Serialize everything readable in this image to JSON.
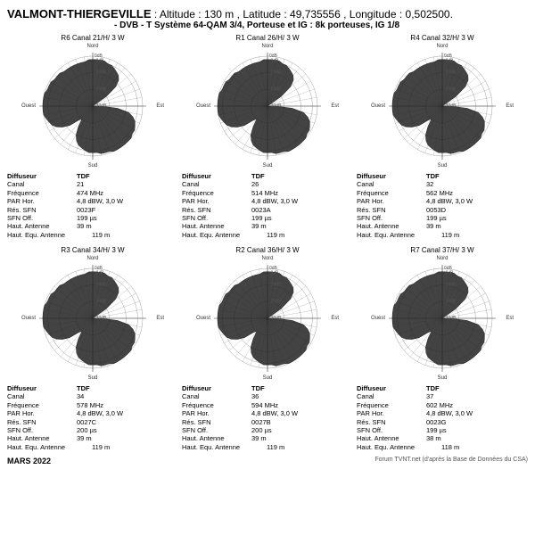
{
  "header": {
    "site_name": "VALMONT-THIERGEVILLE",
    "alt_label": "Altitude",
    "alt_val": "130 m",
    "lat_label": "Latitude",
    "lat_val": "49,735556",
    "lon_label": "Longitude",
    "lon_val": "0,502500",
    "system_line": "- DVB - T   Système 64-QAM 3/4,  Porteuse et IG : 8k porteuses, IG 1/8"
  },
  "compass": {
    "n": "Nord",
    "s": "Sud",
    "e": "Est",
    "w": "Ouest"
  },
  "row_labels": {
    "diffuseur": "Diffuseur",
    "operator": "TDF",
    "canal": "Canal",
    "freq": "Fréquence",
    "par": "PAR Hor.",
    "res_sfn": "Rés. SFN",
    "sfn_off": "SFN Off.",
    "haut_ant": "Haut. Antenne",
    "haut_equ": "Haut. Equ. Antenne"
  },
  "polar_style": {
    "grid_color": "#888888",
    "axis_color": "#333333",
    "fill_color": "#222222",
    "bg": "#ffffff",
    "rings_db": [
      -30,
      -20,
      -10,
      -3,
      0
    ],
    "max_radius": 56
  },
  "panels": [
    {
      "id": "R6",
      "title": "R6  Canal 21/H/ 3 W",
      "canal": "21",
      "freq": "474 MHz",
      "par": "4,8 dBW, 3,0 W",
      "res_sfn": "0023F",
      "sfn_off": "199 µs",
      "haut_ant": "39 m",
      "haut_equ": "119 m",
      "pattern_db": [
        -2,
        -2,
        -2,
        -2,
        -3,
        -3,
        -4,
        -5,
        -6,
        -8,
        -12,
        -20,
        -30,
        -30,
        -30,
        -30,
        -30,
        -30,
        -25,
        -15,
        -8,
        -5,
        -3,
        -2,
        -1,
        -1,
        0,
        0,
        0,
        0,
        0,
        0,
        -1,
        -1,
        -1,
        -2,
        -2,
        -2,
        -3,
        -4,
        -5,
        -7,
        -10,
        -15,
        -20,
        -18,
        -12,
        -8,
        -5,
        -3,
        -2,
        -1,
        0,
        0,
        0,
        0,
        0,
        0,
        -1,
        -1,
        -1,
        -2,
        -2,
        -2,
        -3,
        -3,
        -3,
        -3,
        -3,
        -3,
        -3,
        -2
      ]
    },
    {
      "id": "R1",
      "title": "R1  Canal 26/H/ 3 W",
      "canal": "26",
      "freq": "514 MHz",
      "par": "4,8 dBW, 3,0 W",
      "res_sfn": "0023A",
      "sfn_off": "199 µs",
      "haut_ant": "39 m",
      "haut_equ": "119 m",
      "pattern_db": [
        -2,
        -2,
        -2,
        -2,
        -3,
        -3,
        -4,
        -5,
        -6,
        -8,
        -12,
        -20,
        -30,
        -30,
        -30,
        -30,
        -30,
        -30,
        -25,
        -15,
        -8,
        -5,
        -3,
        -2,
        -1,
        -1,
        0,
        0,
        0,
        0,
        0,
        0,
        -1,
        -1,
        -1,
        -2,
        -2,
        -2,
        -3,
        -4,
        -5,
        -7,
        -10,
        -15,
        -20,
        -18,
        -12,
        -8,
        -5,
        -3,
        -2,
        -1,
        0,
        0,
        0,
        0,
        0,
        0,
        -1,
        -1,
        -1,
        -2,
        -2,
        -2,
        -3,
        -3,
        -3,
        -3,
        -3,
        -3,
        -3,
        -2
      ]
    },
    {
      "id": "R4",
      "title": "R4  Canal 32/H/ 3 W",
      "canal": "32",
      "freq": "562 MHz",
      "par": "4,8 dBW, 3,0 W",
      "res_sfn": "0053D",
      "sfn_off": "199 µs",
      "haut_ant": "39 m",
      "haut_equ": "119 m",
      "pattern_db": [
        -2,
        -2,
        -2,
        -2,
        -3,
        -3,
        -4,
        -5,
        -6,
        -8,
        -12,
        -20,
        -30,
        -30,
        -30,
        -30,
        -30,
        -30,
        -25,
        -15,
        -8,
        -5,
        -3,
        -2,
        -1,
        -1,
        0,
        0,
        0,
        0,
        0,
        0,
        -1,
        -1,
        -1,
        -2,
        -2,
        -2,
        -3,
        -4,
        -5,
        -7,
        -10,
        -15,
        -20,
        -18,
        -12,
        -8,
        -5,
        -3,
        -2,
        -1,
        0,
        0,
        0,
        0,
        0,
        0,
        -1,
        -1,
        -1,
        -2,
        -2,
        -2,
        -3,
        -3,
        -3,
        -3,
        -3,
        -3,
        -3,
        -2
      ]
    },
    {
      "id": "R3",
      "title": "R3  Canal 34/H/ 3 W",
      "canal": "34",
      "freq": "578 MHz",
      "par": "4,8 dBW, 3,0 W",
      "res_sfn": "0027C",
      "sfn_off": "200 µs",
      "haut_ant": "39 m",
      "haut_equ": "119 m",
      "pattern_db": [
        -2,
        -2,
        -2,
        -2,
        -3,
        -3,
        -4,
        -5,
        -6,
        -8,
        -12,
        -20,
        -30,
        -30,
        -30,
        -30,
        -30,
        -30,
        -25,
        -15,
        -8,
        -5,
        -3,
        -2,
        -1,
        -1,
        0,
        0,
        0,
        0,
        0,
        0,
        -1,
        -1,
        -1,
        -2,
        -2,
        -2,
        -3,
        -4,
        -5,
        -7,
        -10,
        -15,
        -20,
        -18,
        -12,
        -8,
        -5,
        -3,
        -2,
        -1,
        0,
        0,
        0,
        0,
        0,
        0,
        -1,
        -1,
        -1,
        -2,
        -2,
        -2,
        -3,
        -3,
        -3,
        -3,
        -3,
        -3,
        -3,
        -2
      ]
    },
    {
      "id": "R2",
      "title": "R2  Canal 36/H/ 3 W",
      "canal": "36",
      "freq": "594 MHz",
      "par": "4,8 dBW, 3,0 W",
      "res_sfn": "0027B",
      "sfn_off": "200 µs",
      "haut_ant": "39 m",
      "haut_equ": "119 m",
      "pattern_db": [
        -2,
        -2,
        -2,
        -2,
        -3,
        -3,
        -4,
        -5,
        -6,
        -8,
        -12,
        -20,
        -30,
        -30,
        -30,
        -30,
        -30,
        -30,
        -25,
        -15,
        -8,
        -5,
        -3,
        -2,
        -1,
        -1,
        0,
        0,
        0,
        0,
        0,
        0,
        -1,
        -1,
        -1,
        -2,
        -2,
        -2,
        -3,
        -4,
        -5,
        -7,
        -10,
        -15,
        -20,
        -18,
        -12,
        -8,
        -5,
        -3,
        -2,
        -1,
        0,
        0,
        0,
        0,
        0,
        0,
        -1,
        -1,
        -1,
        -2,
        -2,
        -2,
        -3,
        -3,
        -3,
        -3,
        -3,
        -3,
        -3,
        -2
      ]
    },
    {
      "id": "R7",
      "title": "R7  Canal 37/H/ 3 W",
      "canal": "37",
      "freq": "602 MHz",
      "par": "4,8 dBW, 3,0 W",
      "res_sfn": "0023G",
      "sfn_off": "199 µs",
      "haut_ant": "38 m",
      "haut_equ": "118 m",
      "pattern_db": [
        -2,
        -2,
        -2,
        -2,
        -3,
        -3,
        -4,
        -5,
        -6,
        -8,
        -12,
        -20,
        -30,
        -30,
        -30,
        -30,
        -30,
        -30,
        -25,
        -15,
        -8,
        -5,
        -3,
        -2,
        -1,
        -1,
        0,
        0,
        0,
        0,
        0,
        0,
        -1,
        -1,
        -1,
        -2,
        -2,
        -2,
        -3,
        -4,
        -5,
        -7,
        -10,
        -15,
        -20,
        -18,
        -12,
        -8,
        -5,
        -3,
        -2,
        -1,
        0,
        0,
        0,
        0,
        0,
        0,
        -1,
        -1,
        -1,
        -2,
        -2,
        -2,
        -3,
        -3,
        -3,
        -3,
        -3,
        -3,
        -3,
        -2
      ]
    }
  ],
  "footer": {
    "date": "MARS 2022",
    "credit": "Forum TVNT.net (d'après la Base de Données du CSA)"
  }
}
